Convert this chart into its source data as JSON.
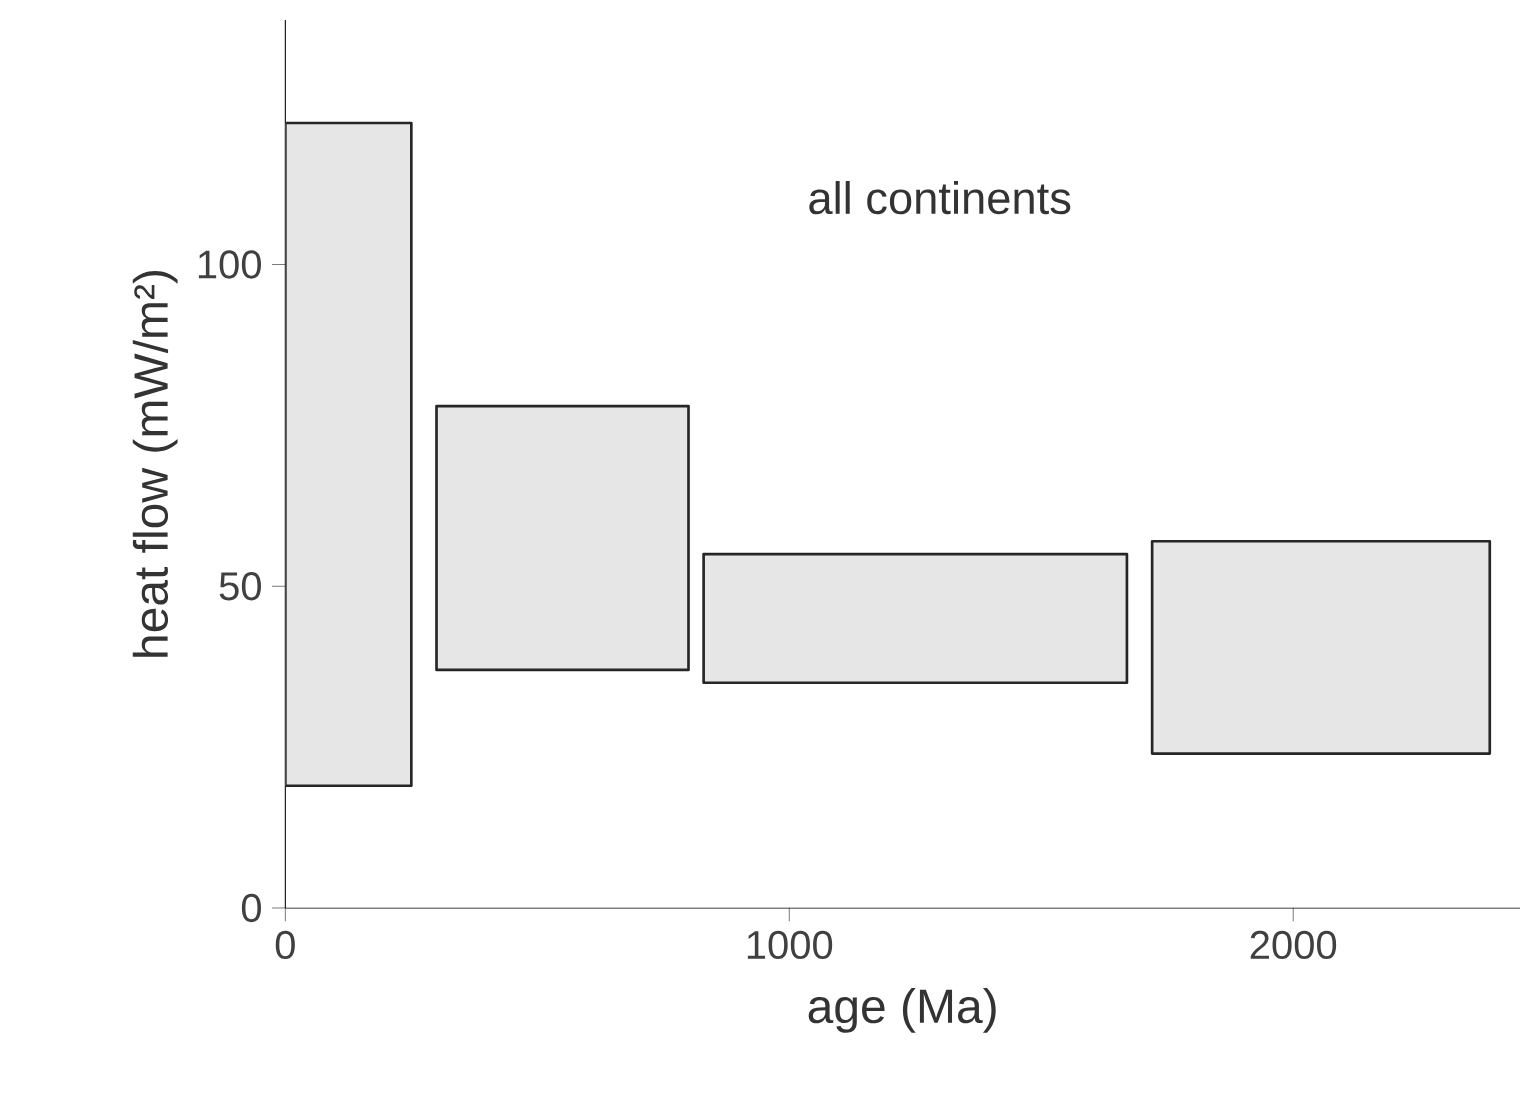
{
  "chart_data": {
    "type": "histogram",
    "xlabel": "age (Ma)",
    "ylabel": "heat flow (mW/m²)",
    "annotations": [
      "all continents"
    ],
    "bins": [
      0,
      250,
      300,
      800,
      830,
      1670,
      1720,
      2390
    ],
    "base": [
      19,
      null,
      37,
      null,
      35,
      null,
      24
    ],
    "values": [
      103,
      null,
      41,
      null,
      20,
      null,
      33
    ],
    "color": "#e6e6e6",
    "xlim": [
      0,
      2450
    ],
    "ylim": [
      0,
      138
    ],
    "xticks": [
      0,
      1000,
      2000
    ],
    "yticks": [
      0,
      50,
      100
    ],
    "grid": false
  }
}
